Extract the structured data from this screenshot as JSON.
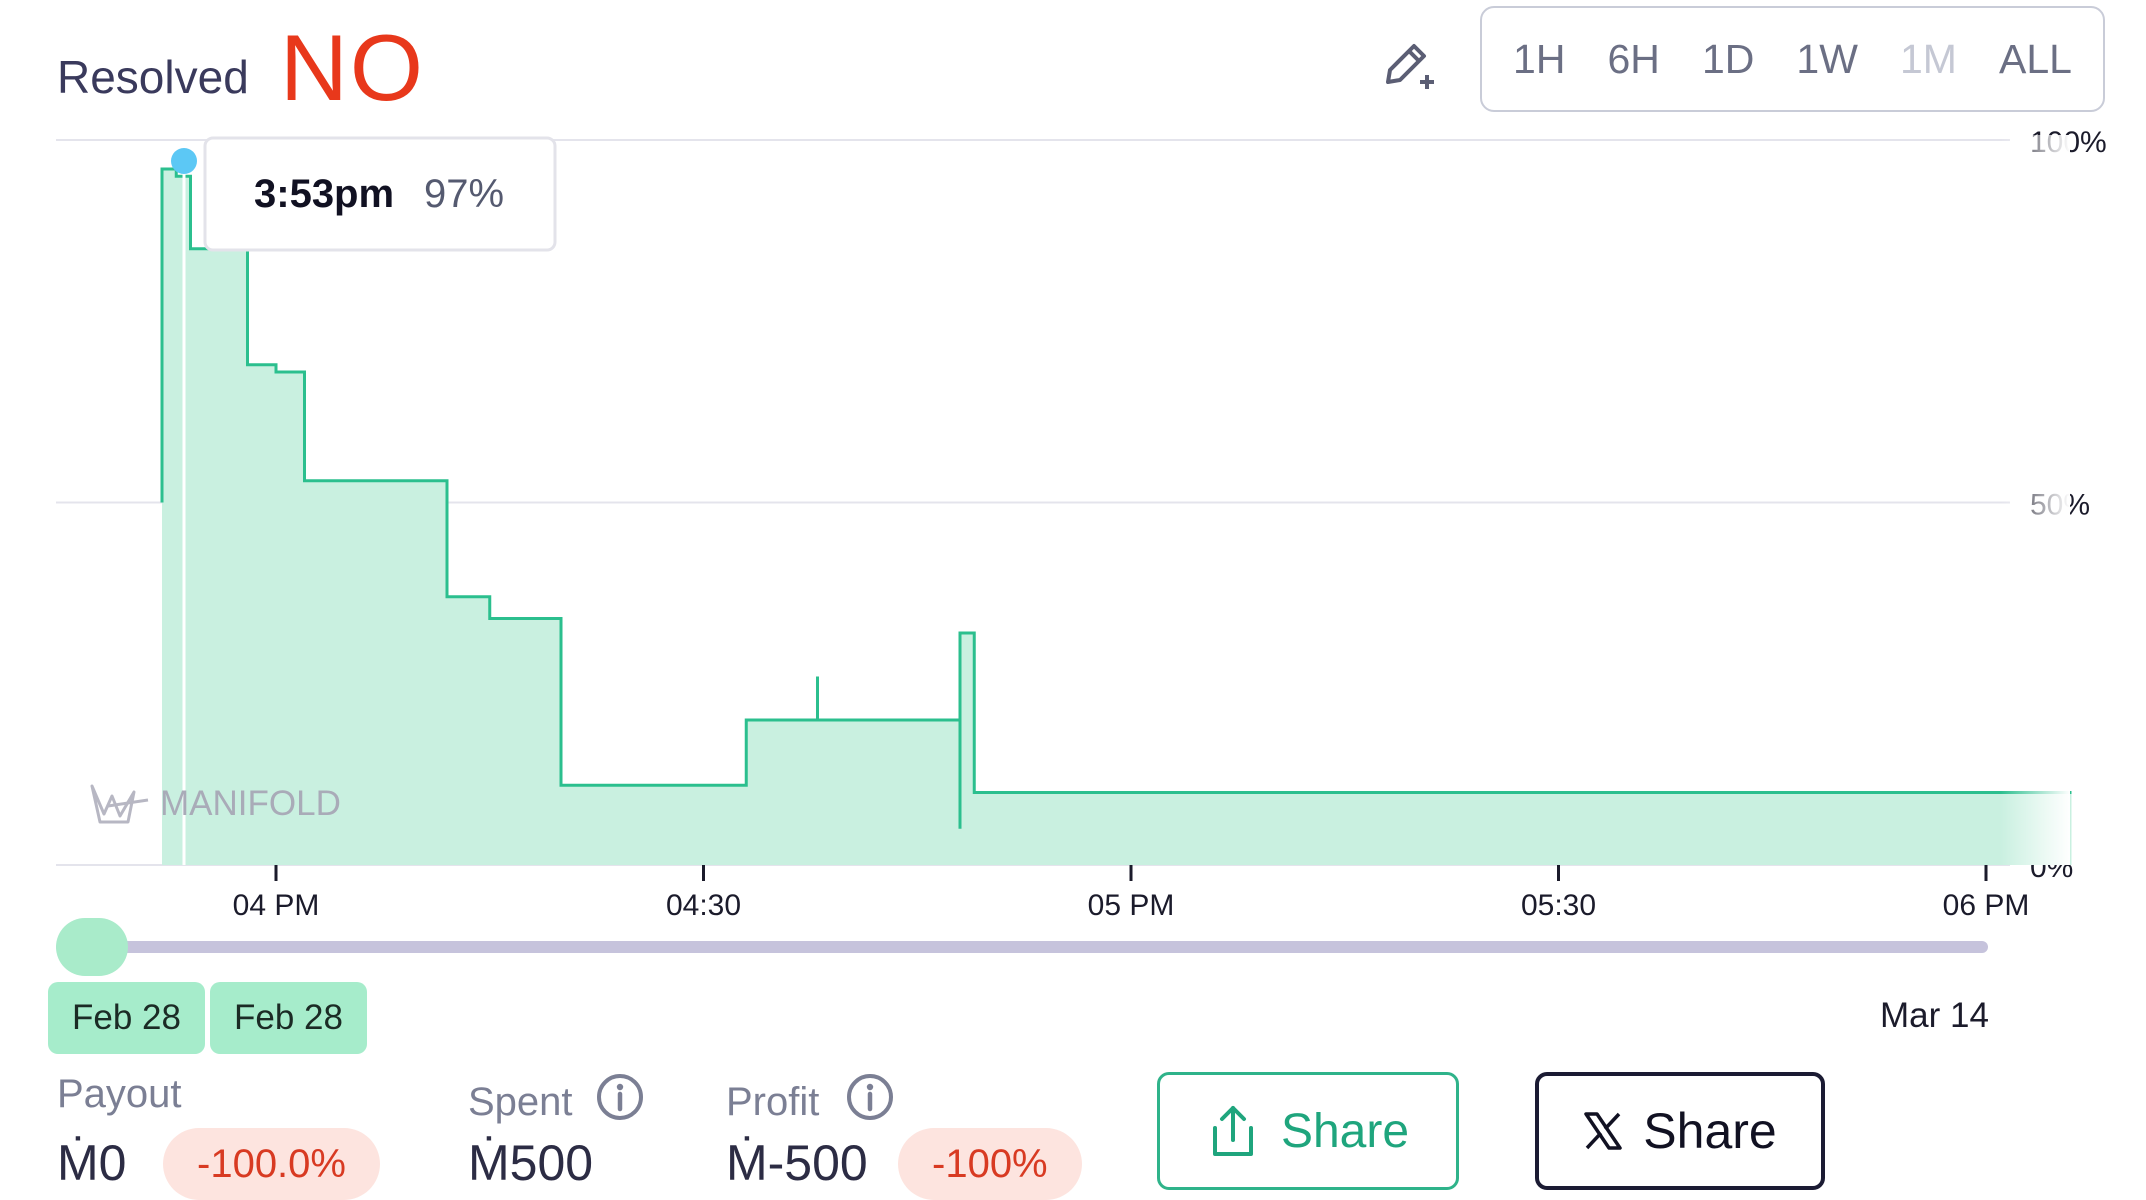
{
  "header": {
    "resolved_label": "Resolved",
    "resolved_value": "NO",
    "resolved_color": "#e8381b",
    "edit_icon": "pencil-plus-icon"
  },
  "time_ranges": [
    {
      "label": "1H",
      "disabled": false
    },
    {
      "label": "6H",
      "disabled": false
    },
    {
      "label": "1D",
      "disabled": false
    },
    {
      "label": "1W",
      "disabled": false
    },
    {
      "label": "1M",
      "disabled": true
    },
    {
      "label": "ALL",
      "disabled": false
    }
  ],
  "tooltip": {
    "time": "3:53pm",
    "value": "97%"
  },
  "watermark": "MANIFOLD",
  "chart_data": {
    "type": "area",
    "title": "",
    "xlabel": "",
    "ylabel": "",
    "y_ticks": [
      "100%",
      "50%",
      "0%"
    ],
    "x_ticks": [
      "04 PM",
      "04:30",
      "05 PM",
      "05:30",
      "06 PM"
    ],
    "ylim": [
      0,
      100
    ],
    "grid": true,
    "line_color": "#2bbf8e",
    "fill_color": "#c9f0e0",
    "series": [
      {
        "values": [
          {
            "t": "3:52pm",
            "p": 50
          },
          {
            "t": "3:52pm",
            "p": 96
          },
          {
            "t": "3:53pm",
            "p": 97
          },
          {
            "t": "3:53pm",
            "p": 95
          },
          {
            "t": "3:54pm",
            "p": 85
          },
          {
            "t": "3:58pm",
            "p": 69
          },
          {
            "t": "4:00pm",
            "p": 68
          },
          {
            "t": "4:02pm",
            "p": 53
          },
          {
            "t": "4:12pm",
            "p": 37
          },
          {
            "t": "4:15pm",
            "p": 34
          },
          {
            "t": "4:20pm",
            "p": 11
          },
          {
            "t": "4:33pm",
            "p": 20
          },
          {
            "t": "4:38pm",
            "p": 26
          },
          {
            "t": "4:38pm",
            "p": 20
          },
          {
            "t": "4:48pm",
            "p": 5
          },
          {
            "t": "4:48pm",
            "p": 32
          },
          {
            "t": "4:49pm",
            "p": 10
          },
          {
            "t": "6:06pm",
            "p": 10
          }
        ]
      }
    ]
  },
  "timeline": {
    "start_dates": [
      "Feb 28",
      "Feb 28"
    ],
    "end_date": "Mar 14"
  },
  "stats": {
    "payout_label": "Payout",
    "payout_value": "Ṁ0",
    "payout_change": "-100.0%",
    "spent_label": "Spent",
    "spent_value": "Ṁ500",
    "profit_label": "Profit",
    "profit_value": "Ṁ-500",
    "profit_change": "-100%"
  },
  "actions": {
    "share_label": "Share",
    "share_icon": "share-upload-icon",
    "x_share_label": "Share",
    "x_icon": "x-logo-icon"
  }
}
